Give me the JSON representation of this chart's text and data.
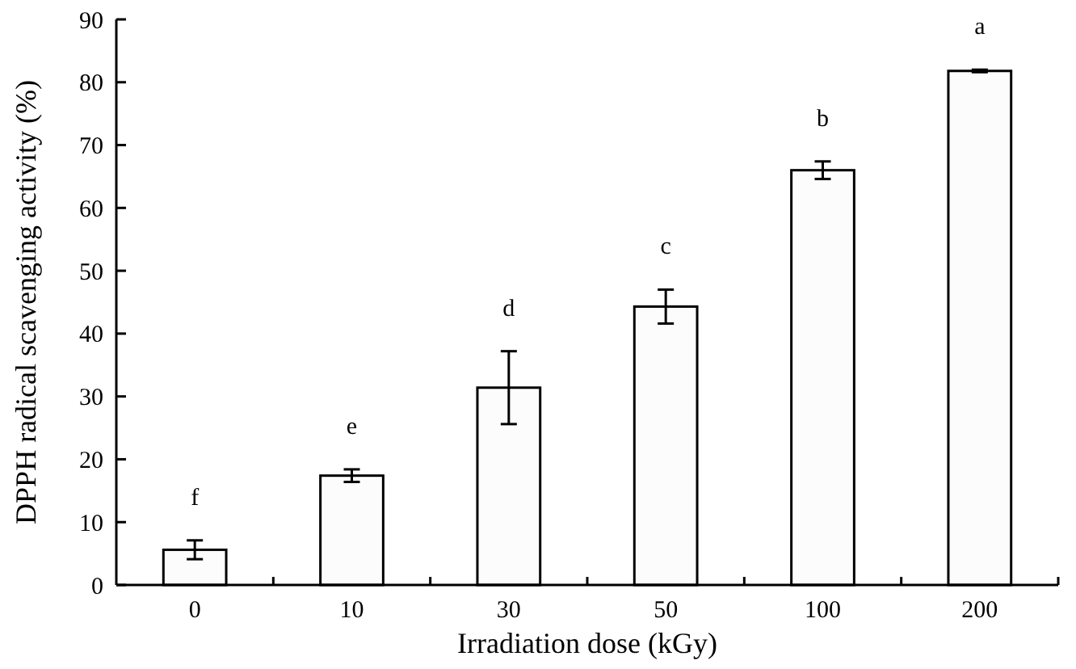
{
  "chart_data": {
    "type": "bar",
    "xlabel": "Irradiation dose (kGy)",
    "ylabel": "DPPH radical scavenging activity (%)",
    "categories": [
      "0",
      "10",
      "30",
      "50",
      "100",
      "200"
    ],
    "values": [
      5.6,
      17.4,
      31.4,
      44.3,
      66.0,
      81.8
    ],
    "errors": [
      1.5,
      1.0,
      5.8,
      2.7,
      1.4,
      0.2
    ],
    "color": "#fcfcfc",
    "ylim": [
      0,
      90
    ],
    "yticks": [
      0,
      10,
      20,
      30,
      40,
      50,
      60,
      70,
      80,
      90
    ],
    "annotations": [
      "f",
      "e",
      "d",
      "c",
      "b",
      "a"
    ]
  }
}
